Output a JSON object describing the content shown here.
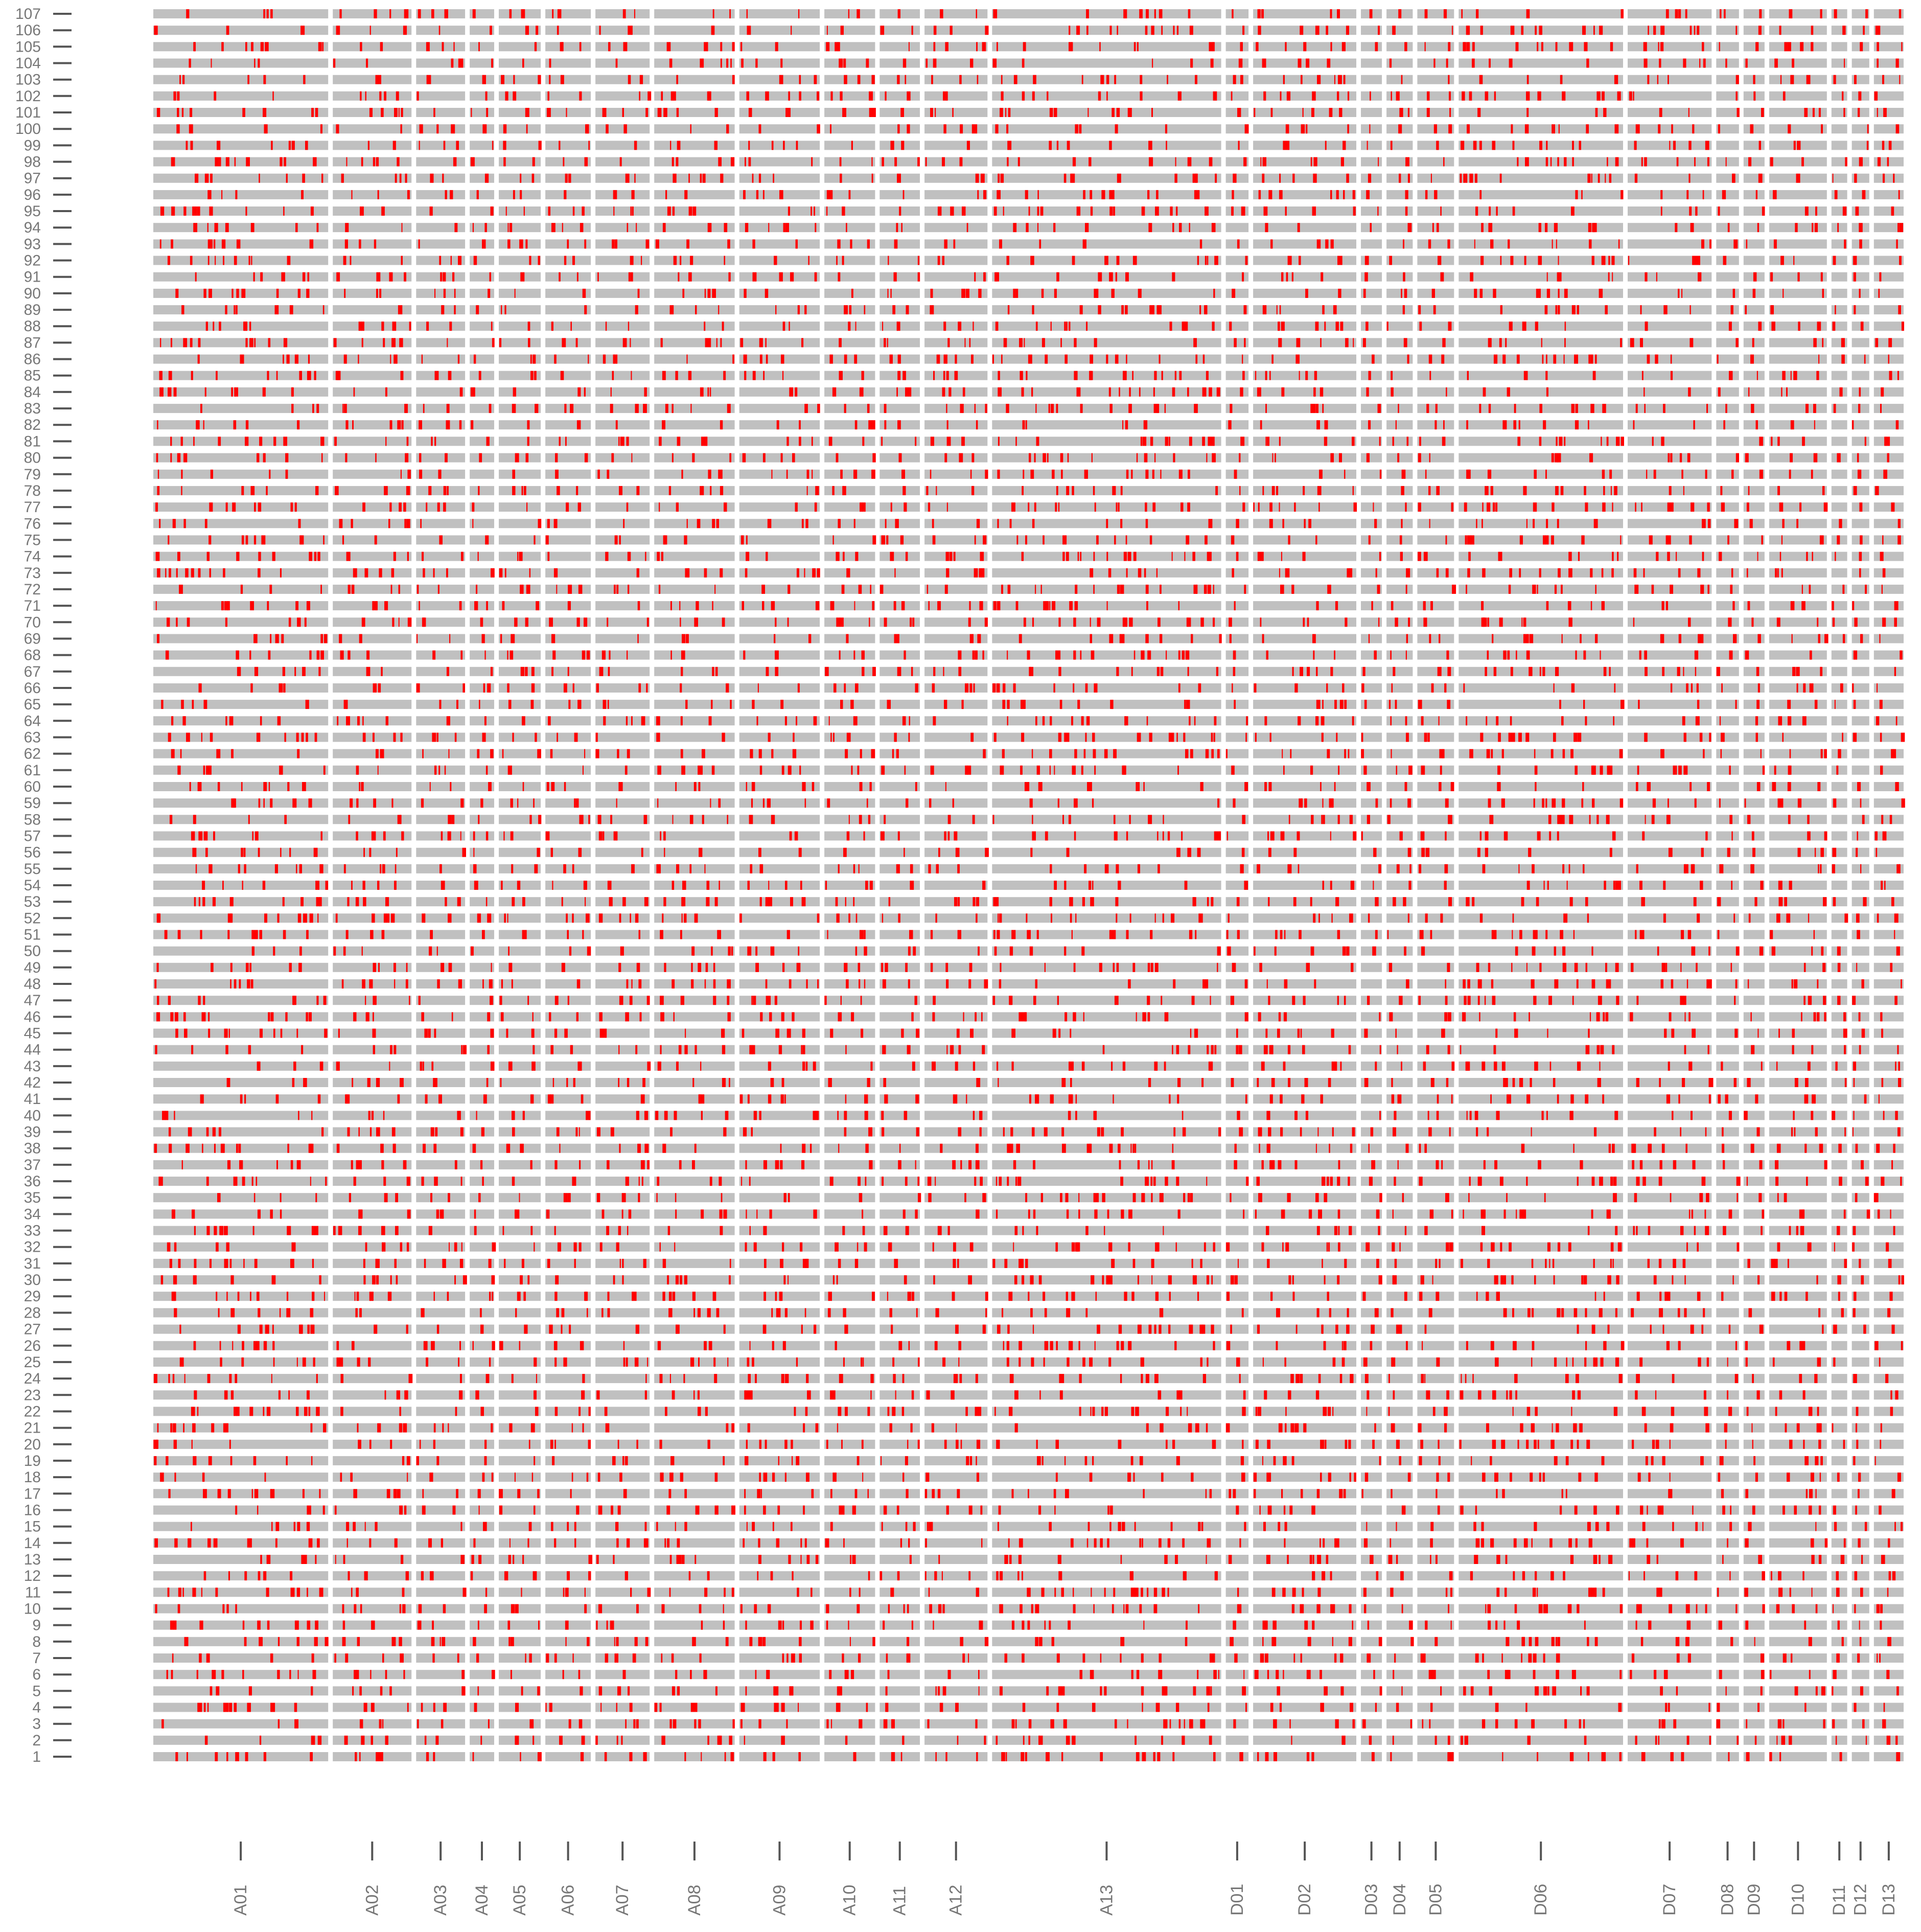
{
  "chart_data": {
    "type": "heatmap",
    "title": "",
    "xlabel": "",
    "ylabel": "",
    "rows": [
      1,
      2,
      3,
      4,
      5,
      6,
      7,
      8,
      9,
      10,
      11,
      12,
      13,
      14,
      15,
      16,
      17,
      18,
      19,
      20,
      21,
      22,
      23,
      24,
      25,
      26,
      27,
      28,
      29,
      30,
      31,
      32,
      33,
      34,
      35,
      36,
      37,
      38,
      39,
      40,
      41,
      42,
      43,
      44,
      45,
      46,
      47,
      48,
      49,
      50,
      51,
      52,
      53,
      54,
      55,
      56,
      57,
      58,
      59,
      60,
      61,
      62,
      63,
      64,
      65,
      66,
      67,
      68,
      69,
      70,
      71,
      72,
      73,
      74,
      75,
      76,
      77,
      78,
      79,
      80,
      81,
      82,
      83,
      84,
      85,
      86,
      87,
      88,
      89,
      90,
      91,
      92,
      93,
      94,
      95,
      96,
      97,
      98,
      99,
      100,
      101,
      102,
      103,
      104,
      105,
      106,
      107
    ],
    "y_tick_labels": [
      "1",
      "2",
      "3",
      "4",
      "5",
      "6",
      "7",
      "8",
      "9",
      "10",
      "11",
      "12",
      "13",
      "14",
      "15",
      "16",
      "17",
      "18",
      "19",
      "20",
      "21",
      "22",
      "23",
      "24",
      "25",
      "26",
      "27",
      "28",
      "29",
      "30",
      "31",
      "32",
      "33",
      "34",
      "35",
      "36",
      "37",
      "38",
      "39",
      "40",
      "41",
      "42",
      "43",
      "44",
      "45",
      "46",
      "47",
      "48",
      "49",
      "50",
      "51",
      "52",
      "53",
      "54",
      "55",
      "56",
      "57",
      "58",
      "59",
      "60",
      "61",
      "62",
      "63",
      "64",
      "65",
      "66",
      "67",
      "68",
      "69",
      "70",
      "71",
      "72",
      "73",
      "74",
      "75",
      "76",
      "77",
      "78",
      "79",
      "80",
      "81",
      "82",
      "83",
      "84",
      "85",
      "86",
      "87",
      "88",
      "89",
      "90",
      "91",
      "92",
      "93",
      "94",
      "95",
      "96",
      "97",
      "98",
      "99",
      "100",
      "101",
      "102",
      "103",
      "104",
      "105",
      "106",
      "107"
    ],
    "chromosomes": [
      {
        "name": "A01",
        "length": 100
      },
      {
        "name": "A02",
        "length": 45
      },
      {
        "name": "A03",
        "length": 28
      },
      {
        "name": "A04",
        "length": 14
      },
      {
        "name": "A05",
        "length": 24
      },
      {
        "name": "A06",
        "length": 26
      },
      {
        "name": "A07",
        "length": 31
      },
      {
        "name": "A08",
        "length": 46
      },
      {
        "name": "A09",
        "length": 46
      },
      {
        "name": "A10",
        "length": 29
      },
      {
        "name": "A11",
        "length": 23
      },
      {
        "name": "A12",
        "length": 36
      },
      {
        "name": "A13",
        "length": 131
      },
      {
        "name": "D01",
        "length": 13
      },
      {
        "name": "D02",
        "length": 59
      },
      {
        "name": "D03",
        "length": 12
      },
      {
        "name": "D04",
        "length": 15
      },
      {
        "name": "D05",
        "length": 21
      },
      {
        "name": "D06",
        "length": 94
      },
      {
        "name": "D07",
        "length": 48
      },
      {
        "name": "D08",
        "length": 13
      },
      {
        "name": "D09",
        "length": 12
      },
      {
        "name": "D10",
        "length": 33
      },
      {
        "name": "D11",
        "length": 9
      },
      {
        "name": "D12",
        "length": 10
      },
      {
        "name": "D13",
        "length": 17
      }
    ],
    "legend": "none",
    "grid": false,
    "colors": {
      "background_segment": "#c0c0c0",
      "marker_highlight": "#ff0000",
      "axis_text": "#777777",
      "tick": "#555555"
    },
    "data_description_note": ""
  }
}
